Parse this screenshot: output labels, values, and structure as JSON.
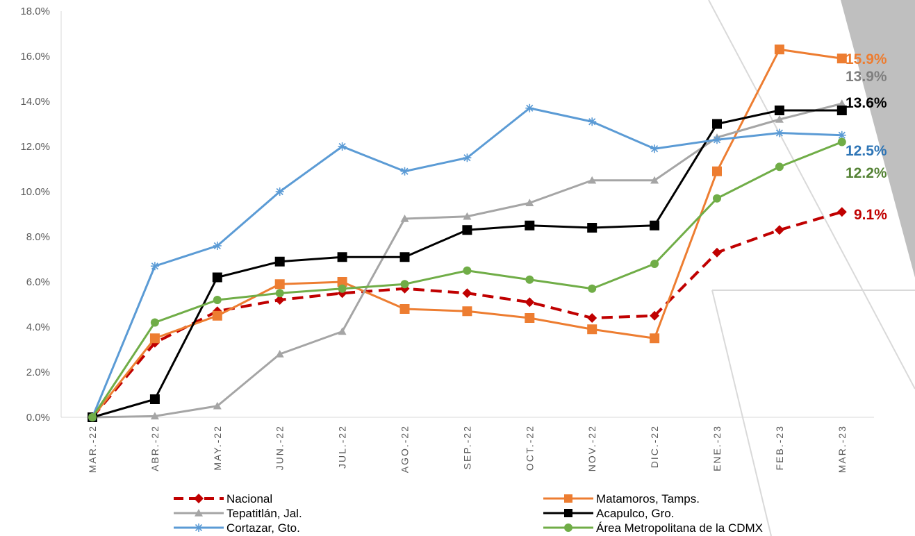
{
  "chart_data": {
    "type": "line",
    "categories": [
      "MAR.-22",
      "ABR.-22",
      "MAY.-22",
      "JUN.-22",
      "JUL.-22",
      "AGO.-22",
      "SEP.-22",
      "OCT.-22",
      "NOV.-22",
      "DIC.-22",
      "ENE.-23",
      "FEB.-23",
      "MAR.-23"
    ],
    "y_ticks": [
      "0.0%",
      "2.0%",
      "4.0%",
      "6.0%",
      "8.0%",
      "10.0%",
      "12.0%",
      "14.0%",
      "16.0%",
      "18.0%"
    ],
    "ylim": [
      0,
      18
    ],
    "grid": false,
    "legend_position": "bottom",
    "series": [
      {
        "name": "Nacional",
        "color": "#C00000",
        "marker": "diamond",
        "dash": true,
        "values": [
          0.0,
          3.3,
          4.7,
          5.2,
          5.5,
          5.7,
          5.5,
          5.1,
          4.4,
          4.5,
          7.3,
          8.3,
          9.1
        ],
        "end_label": "9.1%"
      },
      {
        "name": "Matamoros, Tamps.",
        "color": "#ED7D31",
        "marker": "square",
        "dash": false,
        "values": [
          0.0,
          3.5,
          4.5,
          5.9,
          6.0,
          4.8,
          4.7,
          4.4,
          3.9,
          3.5,
          10.9,
          16.3,
          15.9
        ],
        "end_label": "15.9%"
      },
      {
        "name": "Tepatitlán, Jal.",
        "color": "#A5A5A5",
        "marker": "triangle",
        "dash": false,
        "values": [
          0.0,
          0.05,
          0.5,
          2.8,
          3.8,
          8.8,
          8.9,
          9.5,
          10.5,
          10.5,
          12.4,
          13.2,
          13.9
        ],
        "end_label": "13.9%",
        "end_label_color": "#7F7F7F"
      },
      {
        "name": "Acapulco, Gro.",
        "color": "#000000",
        "marker": "square",
        "dash": false,
        "values": [
          0.0,
          0.8,
          6.2,
          6.9,
          7.1,
          7.1,
          8.3,
          8.5,
          8.4,
          8.5,
          13.0,
          13.6,
          13.6
        ],
        "end_label": "13.6%"
      },
      {
        "name": "Cortazar, Gto.",
        "color": "#5B9BD5",
        "marker": "star",
        "dash": false,
        "values": [
          0.0,
          6.7,
          7.6,
          10.0,
          12.0,
          10.9,
          11.5,
          13.7,
          13.1,
          11.9,
          12.3,
          12.6,
          12.5
        ],
        "end_label": "12.5%",
        "end_label_color": "#2E75B6"
      },
      {
        "name": "Área Metropolitana de la CDMX",
        "color": "#70AD47",
        "marker": "circle",
        "dash": false,
        "values": [
          0.0,
          4.2,
          5.2,
          5.5,
          5.7,
          5.9,
          6.5,
          6.1,
          5.7,
          6.8,
          9.7,
          11.1,
          12.2
        ],
        "end_label": "12.2%",
        "end_label_color": "#548235"
      }
    ]
  }
}
